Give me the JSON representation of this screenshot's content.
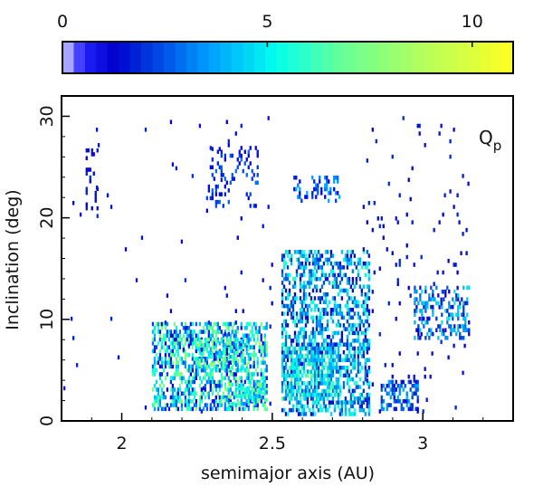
{
  "chart_data": {
    "type": "heatmap",
    "title": "",
    "panel_label": "Q",
    "panel_label_subscript": "p",
    "xlabel": "semimajor axis (AU)",
    "ylabel": "Inclination (deg)",
    "xlim": [
      1.8,
      3.3
    ],
    "ylim": [
      0,
      32
    ],
    "xticks": [
      2,
      2.5,
      3
    ],
    "xtick_labels": [
      "2",
      "2.5",
      "3"
    ],
    "yticks": [
      0,
      10,
      20,
      30
    ],
    "ytick_labels": [
      "0",
      "10",
      "20",
      "30"
    ],
    "grid": false,
    "colorbar": {
      "min": 0,
      "max": 11,
      "ticks": [
        0,
        5,
        10
      ],
      "tick_labels": [
        "0",
        "5",
        "10"
      ],
      "colors": [
        "#ffffff",
        "#0000ff",
        "#00ffff",
        "#80ff80",
        "#ffff00"
      ]
    },
    "clusters": [
      {
        "a": [
          2.1,
          2.48
        ],
        "i": [
          1,
          9.5
        ],
        "density": 0.55,
        "level": [
          1,
          8
        ]
      },
      {
        "a": [
          2.25,
          2.42
        ],
        "i": [
          5,
          8
        ],
        "density": 0.65,
        "level": [
          3,
          8
        ]
      },
      {
        "a": [
          2.34,
          2.48
        ],
        "i": [
          1.5,
          3.5
        ],
        "density": 0.6,
        "level": [
          3,
          8
        ]
      },
      {
        "a": [
          2.53,
          2.82
        ],
        "i": [
          0.5,
          16.5
        ],
        "density": 0.45,
        "level": [
          1,
          6
        ]
      },
      {
        "a": [
          2.53,
          2.72
        ],
        "i": [
          2,
          7
        ],
        "density": 0.55,
        "level": [
          3,
          7
        ]
      },
      {
        "a": [
          2.86,
          2.98
        ],
        "i": [
          1,
          4
        ],
        "density": 0.45,
        "level": [
          1,
          4
        ]
      },
      {
        "a": [
          2.97,
          3.15
        ],
        "i": [
          8,
          13
        ],
        "density": 0.4,
        "level": [
          1,
          5
        ]
      },
      {
        "a": [
          2.28,
          2.45
        ],
        "i": [
          21,
          27
        ],
        "density": 0.18,
        "level": [
          1,
          3
        ]
      },
      {
        "a": [
          2.57,
          2.72
        ],
        "i": [
          21.5,
          24
        ],
        "density": 0.25,
        "level": [
          1,
          4
        ]
      },
      {
        "a": [
          1.88,
          1.92
        ],
        "i": [
          20,
          27
        ],
        "density": 0.2,
        "level": [
          1,
          2
        ]
      },
      {
        "a": [
          2.8,
          3.15
        ],
        "i": [
          0,
          30
        ],
        "density": 0.02,
        "level": [
          1,
          2
        ]
      },
      {
        "a": [
          1.8,
          2.5
        ],
        "i": [
          0,
          30
        ],
        "density": 0.008,
        "level": [
          1,
          2
        ]
      }
    ]
  }
}
